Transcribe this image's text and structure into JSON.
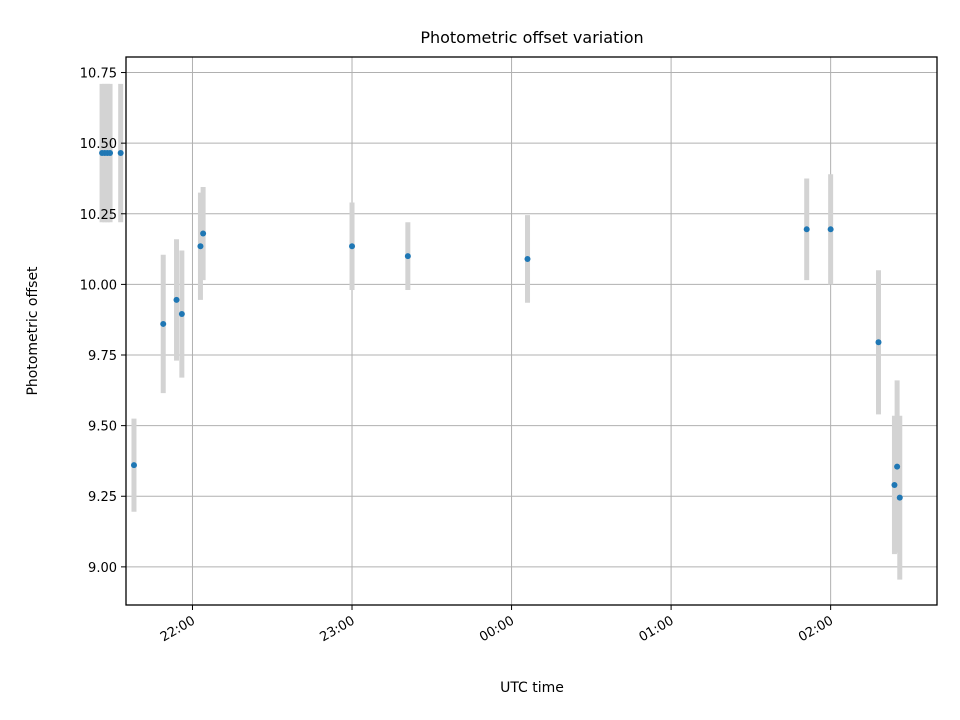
{
  "chart_data": {
    "type": "scatter",
    "title": "Photometric offset variation",
    "xlabel": "UTC time",
    "ylabel": "Photometric offset",
    "grid": true,
    "x_axis_type": "time",
    "xlim": [
      "21:35",
      "02:40"
    ],
    "ylim": [
      8.865,
      10.805
    ],
    "x_ticks": [
      "22:00",
      "23:00",
      "00:00",
      "01:00",
      "02:00"
    ],
    "y_ticks": [
      "9.00",
      "9.25",
      "9.50",
      "9.75",
      "10.00",
      "10.25",
      "10.50",
      "10.75"
    ],
    "colors": {
      "point": "#1f77b4",
      "errorbar": "#d3d3d3",
      "grid": "#b0b0b0"
    },
    "points": [
      {
        "x": "21:26",
        "y": 10.465,
        "err": 0.245
      },
      {
        "x": "21:27",
        "y": 10.465,
        "err": 0.245
      },
      {
        "x": "21:28",
        "y": 10.465,
        "err": 0.245
      },
      {
        "x": "21:29",
        "y": 10.465,
        "err": 0.245
      },
      {
        "x": "21:33",
        "y": 10.465,
        "err": 0.245
      },
      {
        "x": "21:38",
        "y": 9.36,
        "err": 0.165
      },
      {
        "x": "21:49",
        "y": 9.86,
        "err": 0.245
      },
      {
        "x": "21:54",
        "y": 9.945,
        "err": 0.215
      },
      {
        "x": "21:56",
        "y": 9.895,
        "err": 0.225
      },
      {
        "x": "22:03",
        "y": 10.135,
        "err": 0.19
      },
      {
        "x": "22:04",
        "y": 10.18,
        "err": 0.165
      },
      {
        "x": "23:00",
        "y": 10.135,
        "err": 0.155
      },
      {
        "x": "23:21",
        "y": 10.1,
        "err": 0.12
      },
      {
        "x": "00:06",
        "y": 10.09,
        "err": 0.155
      },
      {
        "x": "01:51",
        "y": 10.195,
        "err": 0.18
      },
      {
        "x": "02:00",
        "y": 10.195,
        "err": 0.195
      },
      {
        "x": "02:18",
        "y": 9.795,
        "err": 0.255
      },
      {
        "x": "02:24",
        "y": 9.29,
        "err": 0.245
      },
      {
        "x": "02:25",
        "y": 9.355,
        "err": 0.305
      },
      {
        "x": "02:26",
        "y": 9.245,
        "err": 0.29
      }
    ]
  }
}
